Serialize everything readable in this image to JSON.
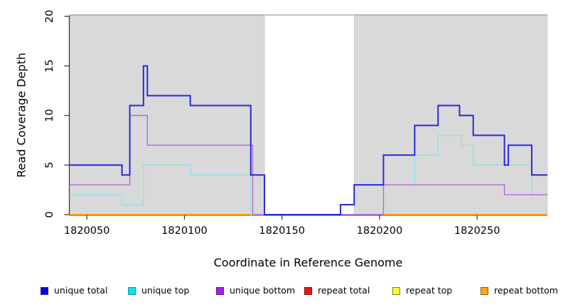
{
  "chart_data": {
    "type": "line",
    "subtype": "step-coverage",
    "title": "",
    "xlabel": "Coordinate in Reference Genome",
    "ylabel": "Read Coverage Depth",
    "xlim": [
      1820041,
      1820286
    ],
    "ylim": [
      0,
      20
    ],
    "xticks": [
      1820050,
      1820100,
      1820150,
      1820200,
      1820250
    ],
    "yticks": [
      0,
      5,
      10,
      15,
      20
    ],
    "grid": false,
    "legend_position": "bottom",
    "background_regions": [
      {
        "label": "repeat-region-left",
        "x0": 1820041,
        "x1": 1820141,
        "color": "#d9d9d9"
      },
      {
        "label": "repeat-region-right",
        "x0": 1820187,
        "x1": 1820286,
        "color": "#d9d9d9"
      }
    ],
    "series": [
      {
        "key": "unique-total",
        "name": "unique total",
        "color": "#2828dd",
        "line_width": 2,
        "steps": [
          [
            1820041,
            5
          ],
          [
            1820068,
            4
          ],
          [
            1820072,
            11
          ],
          [
            1820079,
            15
          ],
          [
            1820081,
            12
          ],
          [
            1820103,
            11
          ],
          [
            1820134,
            4
          ],
          [
            1820141,
            0
          ],
          [
            1820180,
            1
          ],
          [
            1820187,
            3
          ],
          [
            1820202,
            6
          ],
          [
            1820218,
            9
          ],
          [
            1820230,
            11
          ],
          [
            1820241,
            10
          ],
          [
            1820248,
            8
          ],
          [
            1820264,
            5
          ],
          [
            1820266,
            7
          ],
          [
            1820278,
            4
          ],
          [
            1820286,
            4
          ]
        ]
      },
      {
        "key": "unique-top",
        "name": "unique top",
        "color": "#8ce2ea",
        "line_width": 1.4,
        "steps": [
          [
            1820041,
            2
          ],
          [
            1820068,
            1
          ],
          [
            1820079,
            5
          ],
          [
            1820103,
            4
          ],
          [
            1820134,
            0
          ],
          [
            1820180,
            1
          ],
          [
            1820187,
            3
          ],
          [
            1820218,
            6
          ],
          [
            1820230,
            8
          ],
          [
            1820242,
            7
          ],
          [
            1820248,
            5
          ],
          [
            1820278,
            2
          ],
          [
            1820286,
            2
          ]
        ]
      },
      {
        "key": "unique-bottom",
        "name": "unique bottom",
        "color": "#b468e0",
        "line_width": 1.4,
        "steps": [
          [
            1820041,
            3
          ],
          [
            1820072,
            10
          ],
          [
            1820081,
            7
          ],
          [
            1820135,
            0
          ],
          [
            1820202,
            3
          ],
          [
            1820264,
            2
          ],
          [
            1820286,
            2
          ]
        ]
      },
      {
        "key": "repeat-total",
        "name": "repeat total",
        "color": "#d2455f",
        "line_width": 1.4,
        "steps": [
          [
            1820180,
            0
          ],
          [
            1820203,
            0
          ]
        ]
      },
      {
        "key": "repeat-top",
        "name": "repeat top",
        "color": "#f5f500",
        "line_width": 1.4,
        "steps": []
      },
      {
        "key": "repeat-bottom",
        "name": "repeat bottom",
        "color": "#ff9d00",
        "line_width": 2,
        "value": 0,
        "segments": [
          [
            1820041,
            1820141
          ],
          [
            1820202,
            1820286
          ]
        ]
      }
    ]
  },
  "legend": {
    "items": [
      {
        "label": "unique total",
        "fill": "#0000ee",
        "border": "#26266b"
      },
      {
        "label": "unique top",
        "fill": "#00e4ee",
        "border": "#1d8d95"
      },
      {
        "label": "unique bottom",
        "fill": "#a020f0",
        "border": "#5c1d86"
      },
      {
        "label": "repeat total",
        "fill": "#ee1111",
        "border": "#7e1515"
      },
      {
        "label": "repeat top",
        "fill": "#fbfb3a",
        "border": "#87870f"
      },
      {
        "label": "repeat bottom",
        "fill": "#ffa512",
        "border": "#8f5e08"
      }
    ]
  }
}
